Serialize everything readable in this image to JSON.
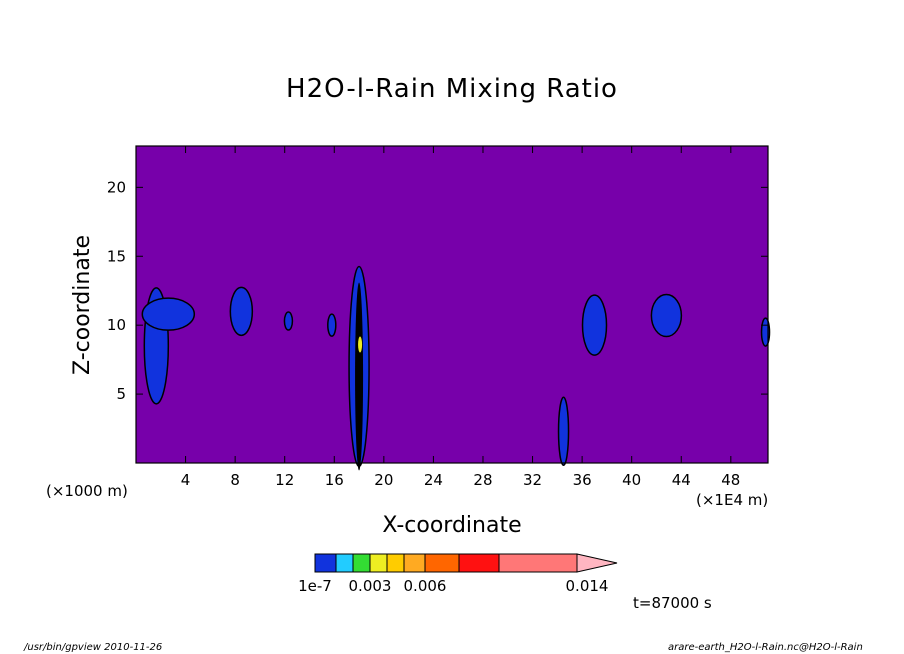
{
  "chart_data": {
    "type": "heatmap",
    "title": "H2O-l-Rain Mixing Ratio",
    "xlabel": "X-coordinate",
    "ylabel": "Z-coordinate",
    "x_unit_left": "(×1000 m)",
    "x_unit_right": "(×1E4 m)",
    "xlim": [
      0,
      51
    ],
    "ylim": [
      0,
      23
    ],
    "x_ticks": [
      4,
      8,
      12,
      16,
      20,
      24,
      28,
      32,
      36,
      40,
      44,
      48
    ],
    "y_ticks": [
      5,
      10,
      15,
      20
    ],
    "background_color": "#7700aa",
    "colorbar": {
      "colors": [
        "#1133dd",
        "#22ccff",
        "#33dd33",
        "#eeee22",
        "#ffcc00",
        "#ffaa22",
        "#ff6600",
        "#ff1111",
        "#ff7777",
        "#ffb6c1"
      ],
      "tick_labels": [
        "1e-7",
        "0.003",
        "0.006",
        "0.014"
      ]
    },
    "features": [
      {
        "x": 1.8,
        "z": 8.5,
        "level": "low"
      },
      {
        "x": 8.5,
        "z": 11,
        "level": "low"
      },
      {
        "x": 12.3,
        "z": 10.3,
        "level": "low"
      },
      {
        "x": 15.8,
        "z": 10,
        "level": "low"
      },
      {
        "x": 18,
        "z": 7,
        "level": "high"
      },
      {
        "x": 34.5,
        "z": 2.3,
        "level": "low"
      },
      {
        "x": 37,
        "z": 10,
        "level": "low"
      },
      {
        "x": 42.8,
        "z": 10.7,
        "level": "low"
      },
      {
        "x": 50.8,
        "z": 9.5,
        "level": "low"
      }
    ]
  },
  "annotation": {
    "time": "t=87000 s"
  },
  "footer": {
    "left": "/usr/bin/gpview   2010-11-26",
    "right": "arare-earth_H2O-l-Rain.nc@H2O-l-Rain"
  }
}
